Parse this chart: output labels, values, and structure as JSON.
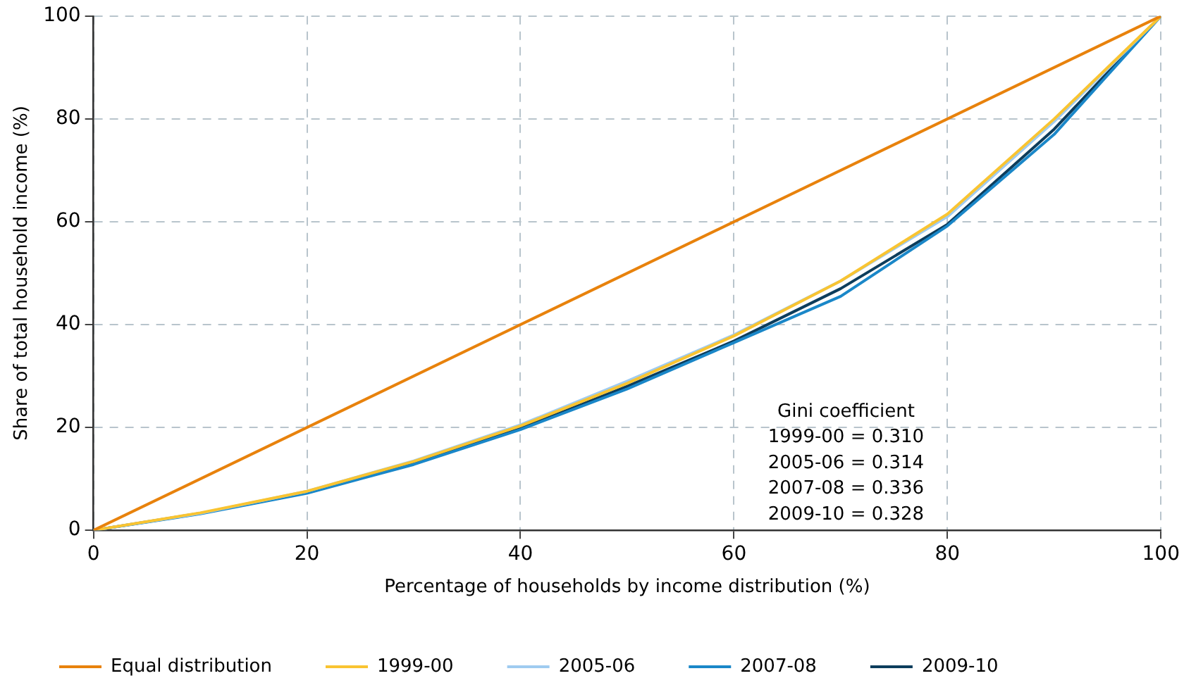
{
  "chart_data": {
    "type": "line",
    "xlabel": "Percentage of households by income distribution (%)",
    "ylabel": "Share of total household income (%)",
    "xlim": [
      0,
      100
    ],
    "xticks": [
      0,
      20,
      40,
      60,
      80,
      100
    ],
    "ylim": [
      0,
      100
    ],
    "yticks": [
      0,
      20,
      40,
      60,
      80,
      100
    ],
    "grid": true,
    "legend": "bottom",
    "marker": "none",
    "line_style": "solid",
    "annotations": [
      "Gini coefficient",
      "1999-00 = 0.310",
      "2005-06 = 0.314",
      "2007-08 = 0.336",
      "2009-10 = 0.328"
    ],
    "series": [
      {
        "name": "Equal distribution",
        "color": "#e8820c",
        "x": [
          0,
          100
        ],
        "values": [
          0,
          100
        ]
      },
      {
        "name": "1999-00",
        "color": "#f9c431",
        "x": [
          0,
          10,
          20,
          30,
          40,
          50,
          60,
          70,
          80,
          90,
          100
        ],
        "values": [
          0,
          3.4,
          7.6,
          13.4,
          20.3,
          28.6,
          37.8,
          48.5,
          61.5,
          80,
          100
        ]
      },
      {
        "name": "2005-06",
        "color": "#9fcbf0",
        "x": [
          0,
          10,
          20,
          30,
          40,
          50,
          60,
          70,
          80,
          90,
          100
        ],
        "values": [
          0,
          3.3,
          7.6,
          13.5,
          20.5,
          29,
          38,
          48.5,
          61,
          79.5,
          100
        ]
      },
      {
        "name": "2007-08",
        "color": "#1a87c8",
        "x": [
          0,
          10,
          20,
          30,
          40,
          50,
          60,
          70,
          80,
          90,
          100
        ],
        "values": [
          0,
          3.2,
          7.2,
          12.8,
          19.6,
          27.5,
          36.5,
          45.5,
          59.2,
          77,
          100
        ]
      },
      {
        "name": "2009-10",
        "color": "#0d3d5c",
        "x": [
          0,
          10,
          20,
          30,
          40,
          50,
          60,
          70,
          80,
          90,
          100
        ],
        "values": [
          0,
          3.3,
          7.3,
          13,
          19.8,
          28,
          36.8,
          47,
          59.5,
          78,
          100
        ]
      }
    ]
  }
}
